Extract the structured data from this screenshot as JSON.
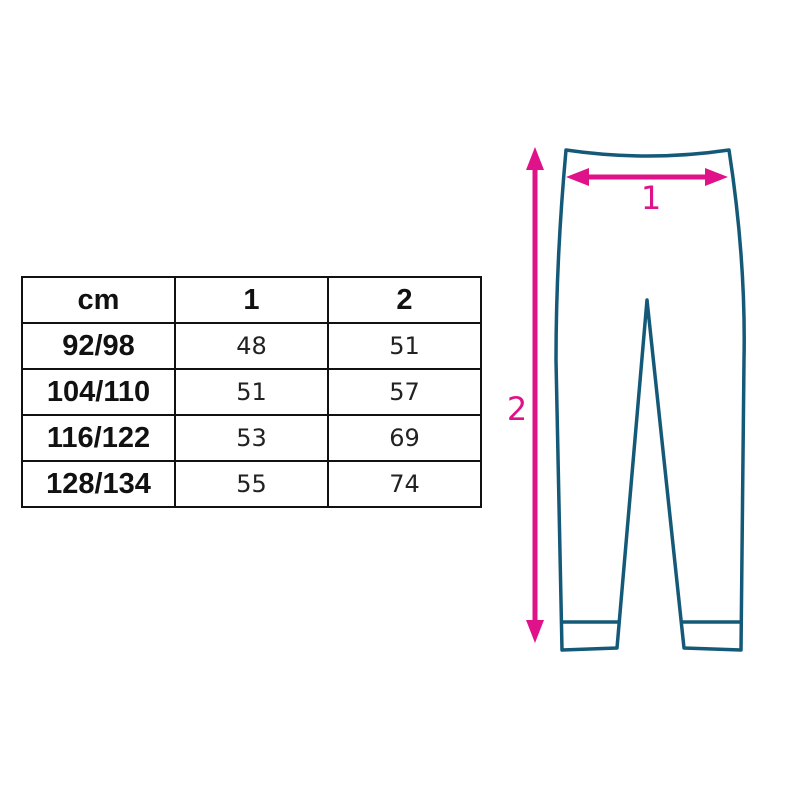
{
  "size_table": {
    "headers": [
      "cm",
      "1",
      "2"
    ],
    "rows": [
      {
        "size": "92/98",
        "m1": "48",
        "m2": "51"
      },
      {
        "size": "104/110",
        "m1": "51",
        "m2": "57"
      },
      {
        "size": "116/122",
        "m1": "53",
        "m2": "69"
      },
      {
        "size": "128/134",
        "m1": "55",
        "m2": "74"
      }
    ]
  },
  "diagram": {
    "waist_label": "1",
    "length_label": "2",
    "outline_color": "#145a78",
    "arrow_color": "#e0128a"
  }
}
